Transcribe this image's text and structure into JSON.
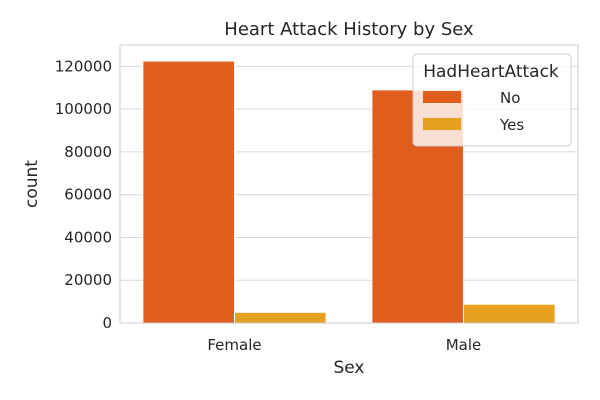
{
  "chart_data": {
    "type": "bar",
    "title": "Heart Attack History by Sex",
    "xlabel": "Sex",
    "ylabel": "count",
    "categories": [
      "Female",
      "Male"
    ],
    "series": [
      {
        "name": "No",
        "values": [
          122500,
          109000
        ]
      },
      {
        "name": "Yes",
        "values": [
          5000,
          8800
        ]
      }
    ],
    "ylim": [
      0,
      130000
    ],
    "yticks": [
      0,
      20000,
      40000,
      60000,
      80000,
      100000,
      120000
    ],
    "grid": true,
    "legend": {
      "title": "HadHeartAttack",
      "position": "top-right"
    },
    "colors": {
      "No": "#e15d1e",
      "Yes": "#e6a11f",
      "grid": "#d9d9d9",
      "frame": "#cccccc"
    }
  }
}
